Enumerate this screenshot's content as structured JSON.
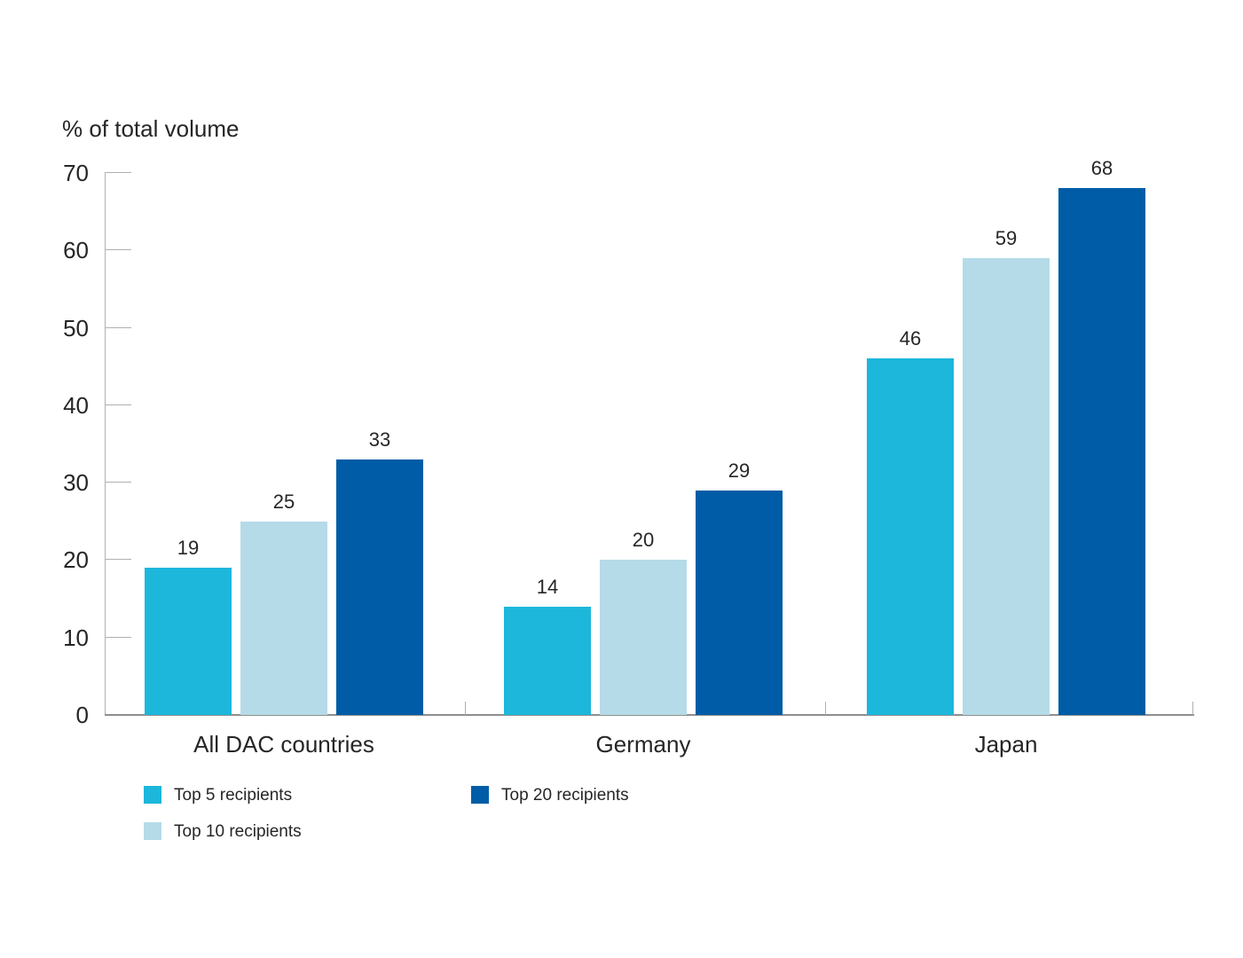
{
  "chart_data": {
    "type": "bar",
    "title": "% of total volume",
    "categories": [
      "All DAC countries",
      "Germany",
      "Japan"
    ],
    "series": [
      {
        "name": "Top 5 recipients",
        "color": "#1cb7db",
        "values": [
          19,
          14,
          46
        ]
      },
      {
        "name": "Top 10 recipients",
        "color": "#b5dbe8",
        "values": [
          25,
          20,
          59
        ]
      },
      {
        "name": "Top 20 recipients",
        "color": "#005ca6",
        "values": [
          33,
          29,
          68
        ]
      }
    ],
    "ylim": [
      0,
      70
    ],
    "yticks": [
      0,
      10,
      20,
      30,
      40,
      50,
      60,
      70
    ],
    "xlabel": "",
    "ylabel": "% of total volume",
    "grid": false,
    "bar_value_labels": true,
    "legend_position": "bottom-left"
  },
  "colors": {
    "background": "#ffffff",
    "text": "#262626",
    "axis": "#b0b0b0",
    "baseline": "#8f8f8f"
  }
}
